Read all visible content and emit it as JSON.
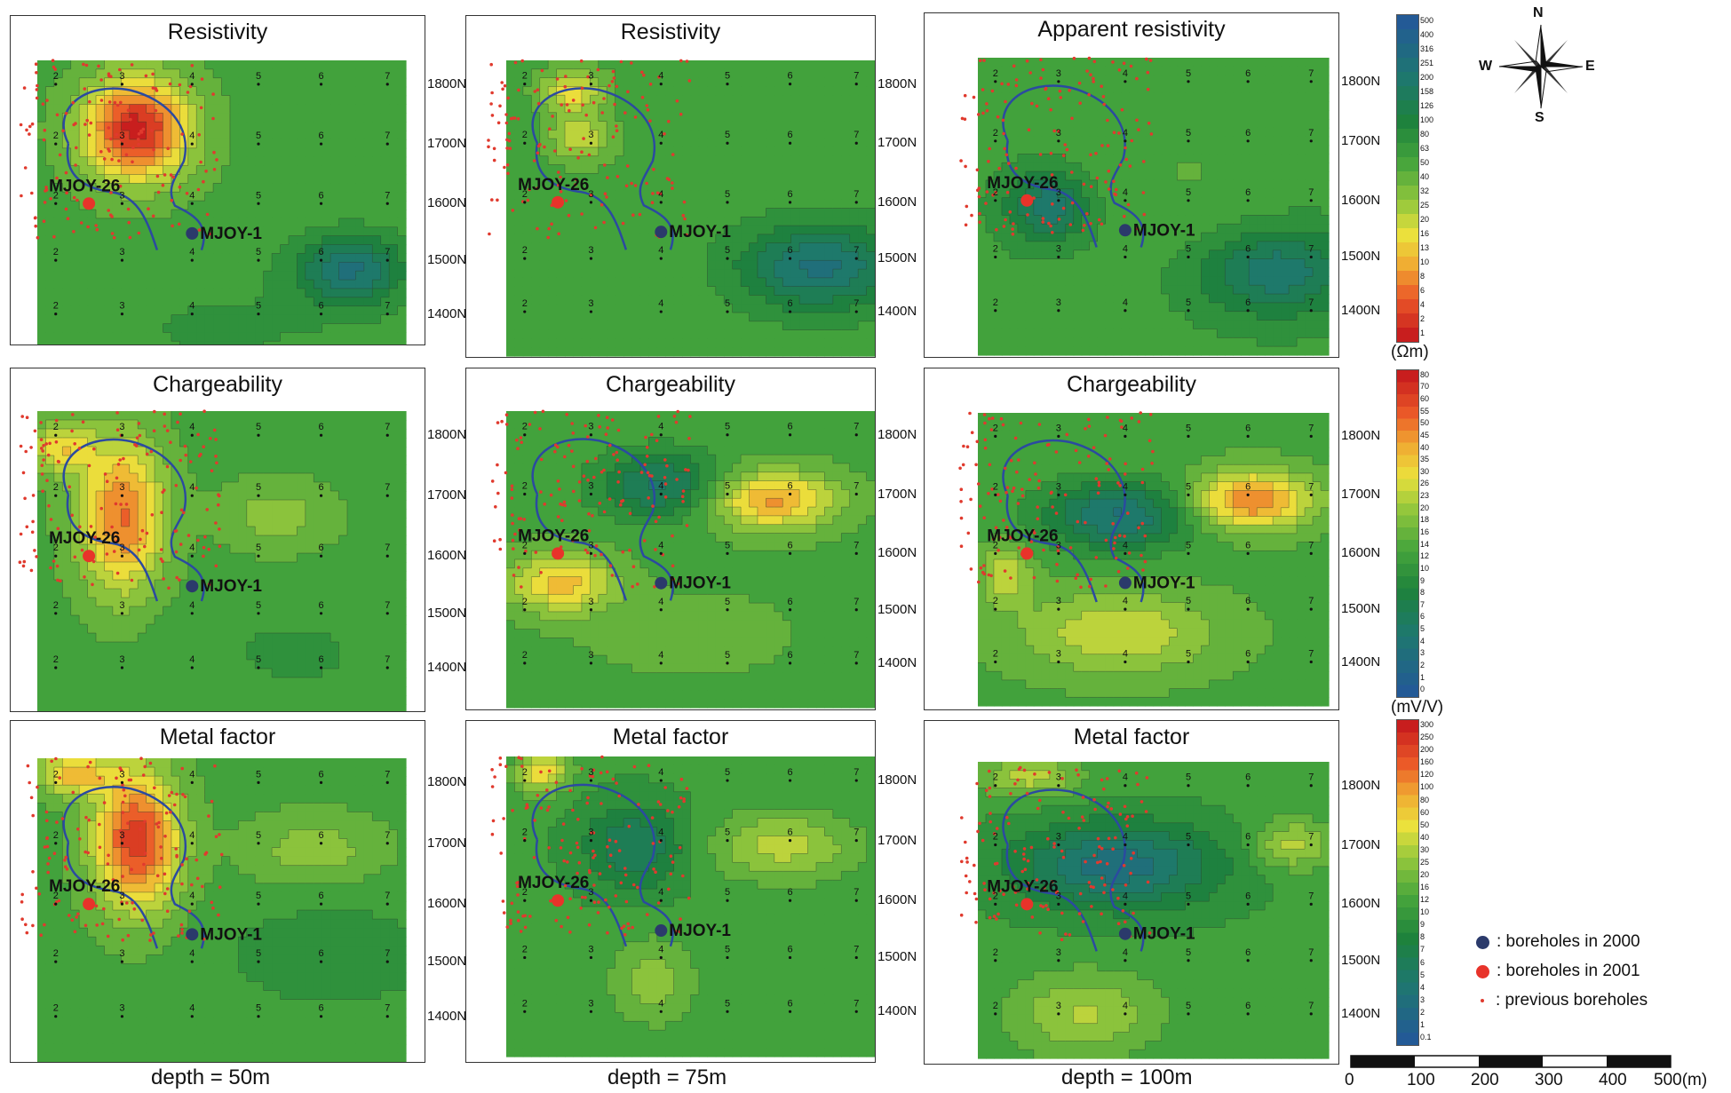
{
  "colors": {
    "low_blue": "#2f6fa3",
    "mid_green": "#3fa44a",
    "yellow": "#f2e23a",
    "red": "#e2322b",
    "borehole_2000": "#2b3a6b",
    "borehole_2001": "#e8332a",
    "previous": "#e03a2e",
    "contour_line": "#2c3e2c",
    "outline": "#2b4aa0"
  },
  "panels": [
    {
      "title": "Resistivity"
    },
    {
      "title": "Resistivity"
    },
    {
      "title": "Apparent resistivity"
    },
    {
      "title": "Chargeability"
    },
    {
      "title": "Chargeability"
    },
    {
      "title": "Chargeability"
    },
    {
      "title": "Metal factor"
    },
    {
      "title": "Metal factor"
    },
    {
      "title": "Metal factor"
    }
  ],
  "northings": [
    "1800N",
    "1700N",
    "1600N",
    "1500N",
    "1400N"
  ],
  "line_numbers": [
    "2",
    "3",
    "4",
    "5",
    "6",
    "7"
  ],
  "boreholes": {
    "a": "MJOY-26",
    "b": "MJOY-1"
  },
  "depths": [
    "depth = 50m",
    "depth = 75m",
    "depth = 100m"
  ],
  "colorbars": [
    {
      "unit": "(Ωm)",
      "ticks": [
        "500",
        "400",
        "316",
        "251",
        "200",
        "158",
        "126",
        "100",
        "80",
        "63",
        "50",
        "40",
        "32",
        "25",
        "20",
        "16",
        "13",
        "10",
        "8",
        "6",
        "4",
        "2",
        "1"
      ]
    },
    {
      "unit": "(mV/V)",
      "ticks": [
        "80",
        "70",
        "60",
        "55",
        "50",
        "45",
        "40",
        "35",
        "30",
        "26",
        "23",
        "20",
        "18",
        "16",
        "14",
        "12",
        "10",
        "9",
        "8",
        "7",
        "6",
        "5",
        "4",
        "3",
        "2",
        "1",
        "0"
      ]
    },
    {
      "unit": "",
      "ticks": [
        "300",
        "250",
        "200",
        "160",
        "120",
        "100",
        "80",
        "60",
        "50",
        "40",
        "30",
        "25",
        "20",
        "16",
        "12",
        "10",
        "9",
        "8",
        "7",
        "6",
        "5",
        "4",
        "3",
        "2",
        "1",
        "0.1"
      ]
    }
  ],
  "compass": {
    "n": "N",
    "s": "S",
    "e": "E",
    "w": "W"
  },
  "legend": {
    "b2000": ": boreholes in 2000",
    "b2001": ": boreholes in 2001",
    "prev": ": previous boreholes"
  },
  "scale": {
    "labels": [
      "0",
      "100",
      "200",
      "300",
      "400",
      "500(m)"
    ]
  }
}
